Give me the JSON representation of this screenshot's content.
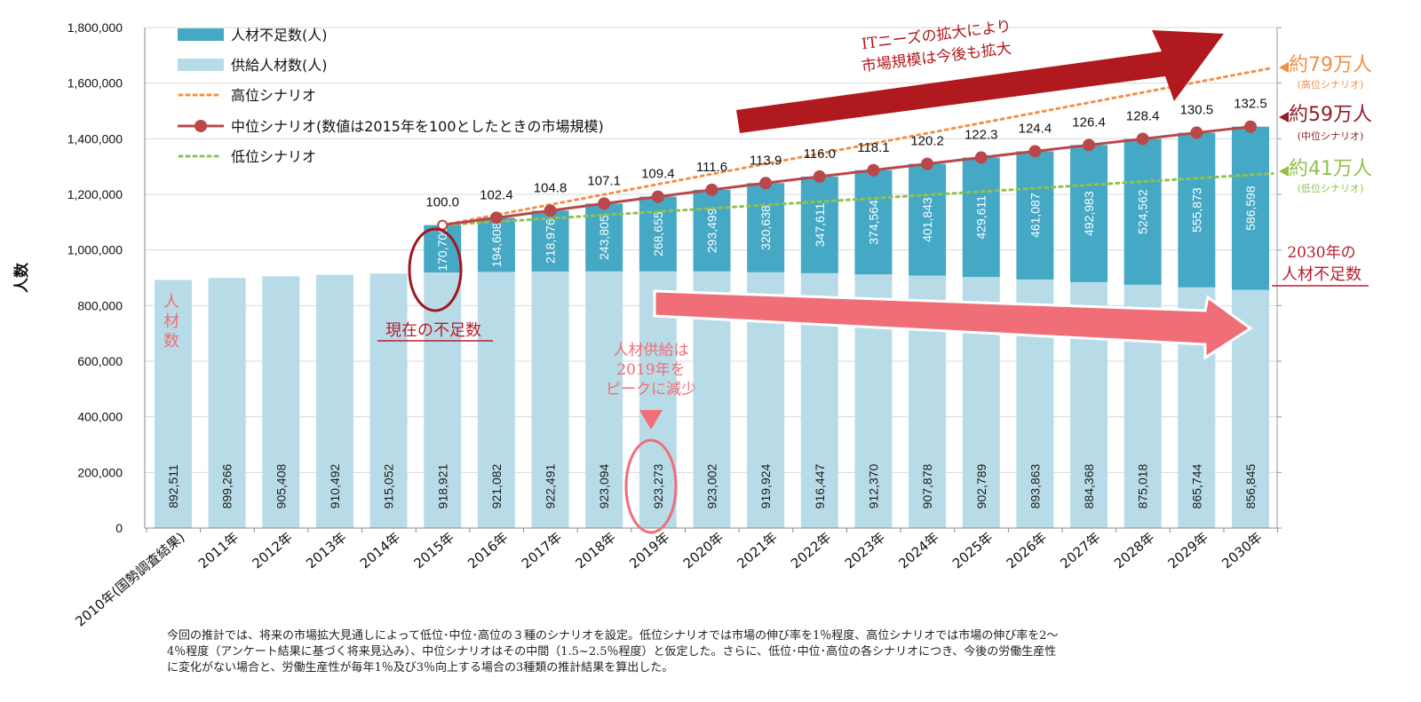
{
  "chart_data": {
    "type": "bar",
    "ylabel": "人数",
    "ylim": [
      0,
      1800000
    ],
    "yticks": [
      "0",
      "200,000",
      "400,000",
      "600,000",
      "800,000",
      "1,000,000",
      "1,200,000",
      "1,400,000",
      "1,600,000",
      "1,800,000"
    ],
    "ytick_values": [
      0,
      200000,
      400000,
      600000,
      800000,
      1000000,
      1200000,
      1400000,
      1600000,
      1800000
    ],
    "categories": [
      "2010年(国勢調査結果)",
      "2011年",
      "2012年",
      "2013年",
      "2014年",
      "2015年",
      "2016年",
      "2017年",
      "2018年",
      "2019年",
      "2020年",
      "2021年",
      "2022年",
      "2023年",
      "2024年",
      "2025年",
      "2026年",
      "2027年",
      "2028年",
      "2029年",
      "2030年"
    ],
    "legend_position": "top-left",
    "series": [
      {
        "name": "供給人材数(人)",
        "color": "#b8dce7",
        "values": [
          892511,
          899266,
          905408,
          910492,
          915052,
          918921,
          921082,
          922491,
          923094,
          923273,
          923002,
          919924,
          916447,
          912370,
          907878,
          902789,
          893863,
          884368,
          875018,
          865744,
          856845
        ],
        "labels": [
          "892,511",
          "899,266",
          "905,408",
          "910,492",
          "915,052",
          "918,921",
          "921,082",
          "922,491",
          "923,094",
          "923,273",
          "923,002",
          "919,924",
          "916,447",
          "912,370",
          "907,878",
          "902,789",
          "893,863",
          "884,368",
          "875,018",
          "865,744",
          "856,845"
        ]
      },
      {
        "name": "人材不足数(人)",
        "color": "#45a8c5",
        "values": [
          null,
          null,
          null,
          null,
          null,
          170700,
          194608,
          218976,
          243805,
          268655,
          293499,
          320638,
          347611,
          374564,
          401843,
          429611,
          461087,
          492983,
          524562,
          555873,
          586598
        ],
        "labels": [
          "",
          "",
          "",
          "",
          "",
          "170,700",
          "194,608",
          "218,976",
          "243,805",
          "268,655",
          "293,499",
          "320,638",
          "347,611",
          "374,564",
          "401,843",
          "429,611",
          "461,087",
          "492,983",
          "524,562",
          "555,873",
          "586,598"
        ]
      }
    ],
    "lines": [
      {
        "name": "高位シナリオ",
        "color": "#f0914a",
        "start_index": 5,
        "values": [
          1089621,
          1655000
        ]
      },
      {
        "name": "中位シナリオ(数値は2015年を100としたときの市場規模)",
        "color": "#b9484a",
        "start_index": 5,
        "values": [
          1089621,
          1115690,
          1141467,
          1166899,
          1191560,
          1216501,
          1240562,
          1264058,
          1286934,
          1309721,
          1332400,
          1354950,
          1377351,
          1399580,
          1421617,
          1443443
        ],
        "index_labels": [
          "100.0",
          "102.4",
          "104.8",
          "107.1",
          "109.4",
          "111.6",
          "113.9",
          "116.0",
          "118.1",
          "120.2",
          "122.3",
          "124.4",
          "126.4",
          "128.4",
          "130.5",
          "132.5"
        ]
      },
      {
        "name": "低位シナリオ",
        "color": "#92c14b",
        "start_index": 5,
        "values": [
          1089621,
          1275000
        ]
      }
    ],
    "annotations": {
      "market_line1": "ITニーズの拡大により",
      "market_line2": "市場規模は今後も拡大",
      "high_val": "約79万人",
      "high_sub": "(高位シナリオ)",
      "mid_val": "約59万人",
      "mid_sub": "(中位シナリオ)",
      "low_val": "約41万人",
      "low_sub": "(低位シナリオ)",
      "shortage_2030_line1": "2030年の",
      "shortage_2030_line2": "人材不足数",
      "current_shortage": "現在の不足数",
      "supply_peak_line1": "人材供給は",
      "supply_peak_line2": "2019年を",
      "supply_peak_line3": "ピークに減少",
      "side_label": [
        "人",
        "材",
        "数"
      ]
    },
    "colors": {
      "dark_red": "#b01a1e",
      "pink": "#f06e78",
      "orange": "#f0914a",
      "green": "#92c14b",
      "mid_red": "#b9484a"
    }
  },
  "footnote": {
    "line1": "今回の推計では、将来の市場拡大見通しによって低位･中位･高位の３種のシナリオを設定。低位シナリオでは市場の伸び率を1％程度、高位シナリオでは市場の伸び率を2〜",
    "line2": "4％程度（アンケート結果に基づく将来見込み）、中位シナリオはその中間（1.5~2.5％程度）と仮定した。さらに、低位･中位･高位の各シナリオにつき、今後の労働生産性",
    "line3": "に変化がない場合と、労働生産性が毎年1％及び3％向上する場合の3種類の推計結果を算出した。"
  }
}
